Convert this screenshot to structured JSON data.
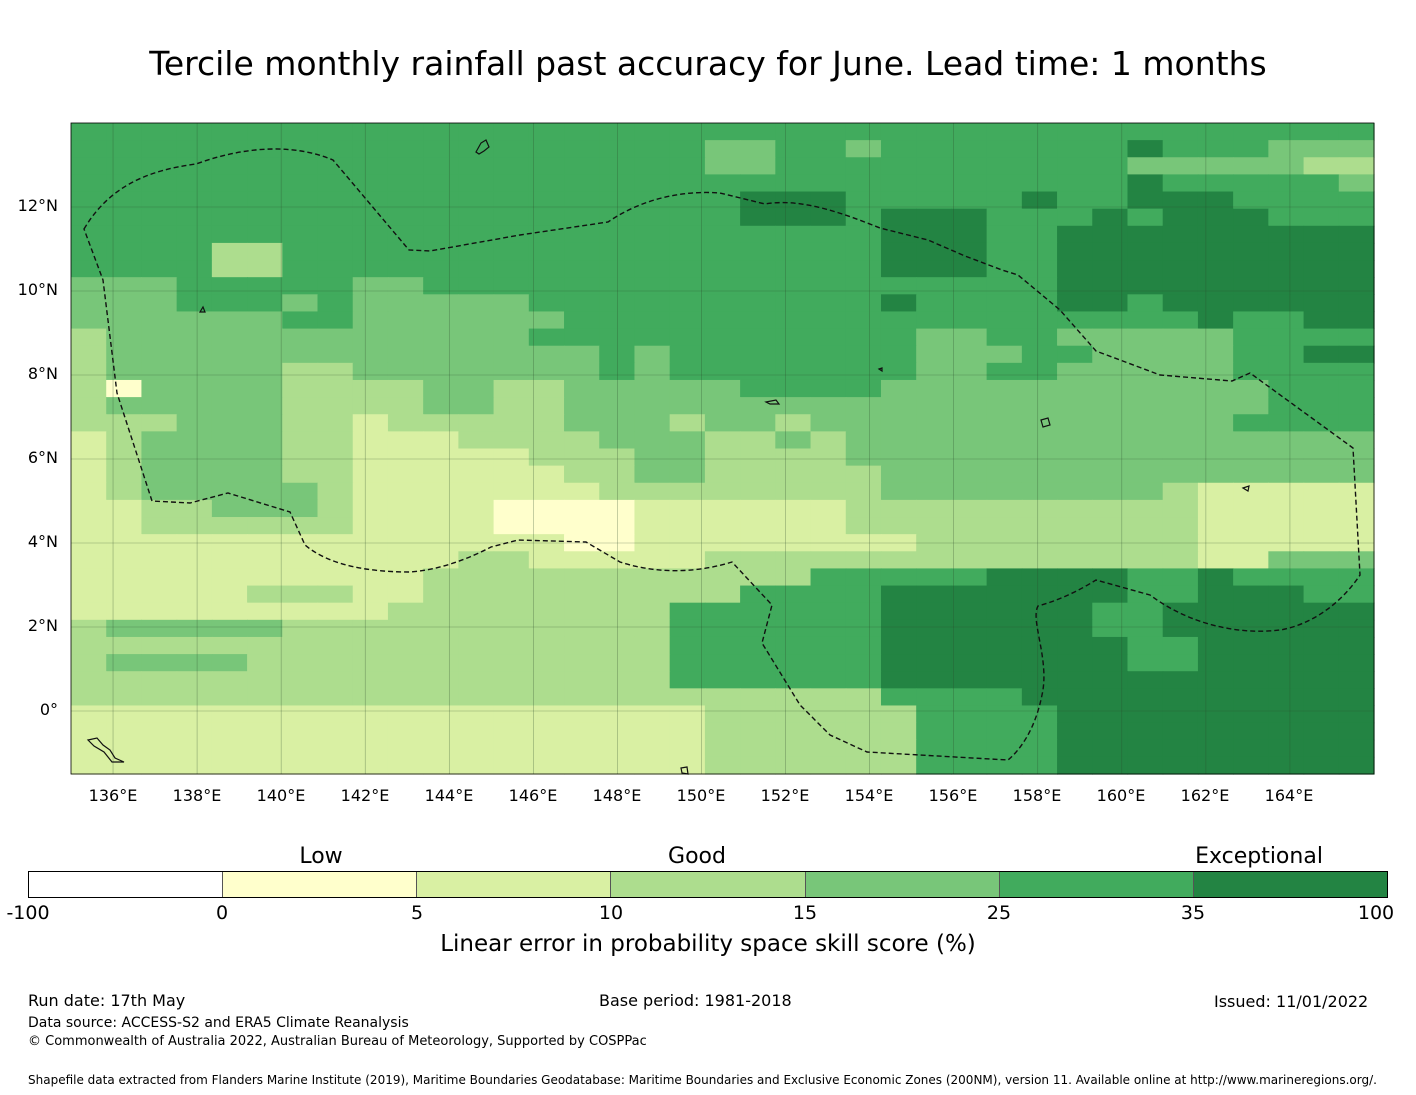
{
  "title": "Tercile monthly rainfall past accuracy for June. Lead time: 1 months",
  "map": {
    "lon_range": [
      135,
      166
    ],
    "lat_range": [
      -1.5,
      14
    ],
    "lat_ticks": [
      "12°N",
      "10°N",
      "8°N",
      "6°N",
      "4°N",
      "2°N",
      "0°"
    ],
    "lon_ticks": [
      "136°E",
      "138°E",
      "140°E",
      "142°E",
      "144°E",
      "146°E",
      "148°E",
      "150°E",
      "152°E",
      "154°E",
      "156°E",
      "158°E",
      "160°E",
      "162°E",
      "164°E"
    ],
    "grid_resolution_deg": 0.833,
    "grid_lines": true,
    "eez_boundary_style": "dashed",
    "skill_rows_north_to_south": [
      "5555555555555555555555555555555555555",
      "5555555555555555554455455555556555444",
      "5555555555555555554455555555554444433",
      "5555555555555555555555555555556555554",
      "5555555555555555555666555556556665555",
      "5555555555555555555666566655565666555",
      "5555555555555555555555566655666666666",
      "5555335555555555555555566655666666666",
      "5555335555555555555555566655666666666",
      "4445555544555555555555555555666666666",
      "4445554544444555555555565555665666666",
      "4444445544444455555555555555555565566",
      "3444444444444555555555554455444445555",
      "3444444444444445455555554445544445566",
      "3444443344444445455555554455444445555",
      "3144443333443344444555544444444444555",
      "3444443333443344444444444444444444555",
      "3334443323333344434434444444444445555",
      "2344443322233334443343444444444444444",
      "2344443322222333443333444444444444444",
      "2344443322222233443333344444444444444",
      "2344444322222223333333344444444322222",
      "2233444322221111222222333333333322222",
      "2233333322221111222222333333333322222",
      "2222222222222211222222223333333322222",
      "2222222222233222223333333333333322444",
      "2222222222333333333335555566665565555",
      "2222233322333333333555566666665566655",
      "2222222223333333355555566666655666666",
      "3444443333333333355555566666655666666",
      "3333333333333333355555566666665566666",
      "3444433333333333355555566666665566666",
      "3333333333333333355555566666666666666",
      "3333333333333333333333355556666666666",
      "2222222222222222223333335555666666666",
      "2222222222222222223333335555666666666",
      "2222222222222222223333335555666666666",
      "2222222222222222223333335555666666666"
    ]
  },
  "colorbar": {
    "categories": [
      "Low",
      "Good",
      "Exceptional"
    ],
    "tick_labels": [
      "-100",
      "0",
      "5",
      "10",
      "15",
      "25",
      "35",
      "100"
    ],
    "colors": [
      "#ffffff",
      "#ffffcc",
      "#d9f0a3",
      "#addd8e",
      "#78c679",
      "#41ab5d",
      "#238443"
    ],
    "label": "Linear error in probability space skill score (%)"
  },
  "footer": {
    "run_date": "Run date: 17th May",
    "base_period": "Base period: 1981-2018",
    "issued": "Issued: 11/01/2022",
    "data_source": "Data source: ACCESS-S2 and ERA5 Climate Reanalysis",
    "copyright": "© Commonwealth of Australia 2022, Australian Bureau of Meteorology, Supported by COSPPac",
    "shapefile_note": "Shapefile data extracted from Flanders Marine Institute (2019), Maritime Boundaries Geodatabase: Maritime Boundaries and Exclusive Economic Zones (200NM), version 11. Available online at http://www.marineregions.org/."
  }
}
